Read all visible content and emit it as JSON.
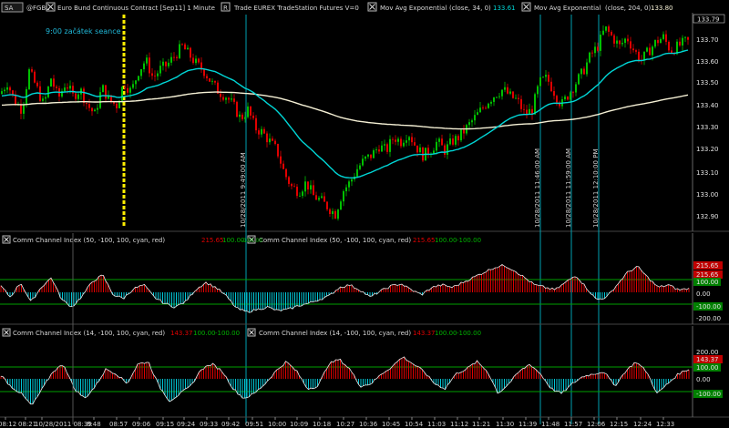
{
  "header": {
    "symbol_box": "SA",
    "symbol": "@FGBL",
    "description": "Euro Bund Continuous Contract [Sep11]  1 Minute",
    "trade_box": "R",
    "trade_info": "Trade  EUREX  TradeStation  Futures  V=0",
    "ind1_name": "Mov Avg Exponential",
    "ind1_params": "(close, 34, 0)",
    "ind1_value": "133.61",
    "ind2_name": "Mov Avg Exponential",
    "ind2_params": "(close, 204, 0)",
    "ind2_value": "133.80"
  },
  "annotations": {
    "session_start": "9:00 začátek seance",
    "vline1": "10/28/2011 9:49:00 AM",
    "vline2": "10/28/2011 11:46:00 AM",
    "vline3": "10/28/2011 11:59:00 AM",
    "vline4": "10/28/2011 12:10:00 PM"
  },
  "cci1": {
    "title_a": "Comm Channel Index  (50, -100, 100, cyan, red)",
    "title_b": "Comm Channel Index  (50, -100, 100, cyan, red)",
    "val": "215.65",
    "upper": "100.00",
    "lower": "-100.00",
    "axis_value_badge": "215.65",
    "axis_upper_badge": "100.00",
    "axis_lower_badge": "-100.00",
    "axis_minus200": "-200.00",
    "axis_zero": "0.00"
  },
  "cci2": {
    "title_a": "Comm Channel Index  (14, -100, 100, cyan, red)",
    "title_b": "Comm Channel Index  (14, -100, 100, cyan, red)",
    "val": "143.37",
    "upper": "100.00",
    "lower": "-100.00",
    "axis_200": "200.00",
    "axis_value_badge": "143.37",
    "axis_upper_badge": "100.00",
    "axis_zero": "0.00",
    "axis_lower_badge": "-100.00"
  },
  "price_axis": [
    "133.70",
    "133.60",
    "133.50",
    "133.40",
    "133.30",
    "133.20",
    "133.10",
    "133.00",
    "132.90"
  ],
  "price_axis_top": "133.79",
  "time_axis": [
    "08:12",
    "08:21",
    "10/28/2011 08:39",
    "8:48",
    "08:57",
    "09:06",
    "09:15",
    "09:24",
    "09:33",
    "09:42",
    "09:51",
    "10:00",
    "10:09",
    "10:18",
    "10:27",
    "10:36",
    "10:45",
    "10:54",
    "11:03",
    "11:12",
    "11:21",
    "11:30",
    "11:39",
    "11:48",
    "11:57",
    "12:06",
    "12:15",
    "12:24",
    "12:33"
  ],
  "colors": {
    "up": "#00c000",
    "down": "#e00000",
    "ema34": "#00d6d6",
    "ema204": "#f5f0d5",
    "vline": "#00a0b0",
    "session_line": "#ffee00",
    "cci_pos": "#e00000",
    "cci_neg": "#00c8d8",
    "green_band": "#00a000"
  },
  "chart_data": {
    "type": "candlestick",
    "instrument": "@FGBL",
    "ylim": [
      132.86,
      133.8
    ],
    "ema34_last": 133.61,
    "ema204_last": 133.8,
    "price_path": [
      [
        0,
        133.45
      ],
      [
        8,
        133.5
      ],
      [
        16,
        133.42
      ],
      [
        24,
        133.38
      ],
      [
        32,
        133.55
      ],
      [
        40,
        133.48
      ],
      [
        48,
        133.4
      ],
      [
        56,
        133.52
      ],
      [
        64,
        133.43
      ],
      [
        72,
        133.5
      ],
      [
        80,
        133.44
      ],
      [
        88,
        133.47
      ],
      [
        96,
        133.4
      ],
      [
        104,
        133.36
      ],
      [
        112,
        133.48
      ],
      [
        120,
        133.42
      ],
      [
        128,
        133.4
      ],
      [
        136,
        133.5
      ],
      [
        144,
        133.46
      ],
      [
        152,
        133.55
      ],
      [
        160,
        133.6
      ],
      [
        168,
        133.52
      ],
      [
        176,
        133.56
      ],
      [
        184,
        133.58
      ],
      [
        192,
        133.62
      ],
      [
        200,
        133.66
      ],
      [
        208,
        133.62
      ],
      [
        216,
        133.58
      ],
      [
        224,
        133.55
      ],
      [
        232,
        133.5
      ],
      [
        240,
        133.46
      ],
      [
        248,
        133.44
      ],
      [
        256,
        133.4
      ],
      [
        264,
        133.34
      ],
      [
        272,
        133.38
      ],
      [
        280,
        133.3
      ],
      [
        288,
        133.28
      ],
      [
        296,
        133.24
      ],
      [
        304,
        133.2
      ],
      [
        312,
        133.1
      ],
      [
        320,
        133.04
      ],
      [
        328,
        133.02
      ],
      [
        336,
        133.06
      ],
      [
        344,
        133.0
      ],
      [
        352,
        132.98
      ],
      [
        360,
        132.95
      ],
      [
        368,
        132.92
      ],
      [
        376,
        133.02
      ],
      [
        384,
        133.06
      ],
      [
        392,
        133.12
      ],
      [
        400,
        133.16
      ],
      [
        408,
        133.18
      ],
      [
        416,
        133.22
      ],
      [
        424,
        133.2
      ],
      [
        432,
        133.26
      ],
      [
        440,
        133.24
      ],
      [
        448,
        133.28
      ],
      [
        456,
        133.22
      ],
      [
        464,
        133.18
      ],
      [
        472,
        133.2
      ],
      [
        480,
        133.24
      ],
      [
        488,
        133.2
      ],
      [
        496,
        133.24
      ],
      [
        504,
        133.26
      ],
      [
        512,
        133.3
      ],
      [
        520,
        133.34
      ],
      [
        528,
        133.38
      ],
      [
        536,
        133.42
      ],
      [
        544,
        133.45
      ],
      [
        552,
        133.47
      ],
      [
        560,
        133.44
      ],
      [
        568,
        133.42
      ],
      [
        576,
        133.36
      ],
      [
        584,
        133.38
      ],
      [
        592,
        133.5
      ],
      [
        600,
        133.52
      ],
      [
        608,
        133.46
      ],
      [
        616,
        133.4
      ],
      [
        624,
        133.45
      ],
      [
        632,
        133.5
      ],
      [
        640,
        133.55
      ],
      [
        648,
        133.62
      ],
      [
        656,
        133.66
      ],
      [
        664,
        133.74
      ],
      [
        672,
        133.7
      ],
      [
        680,
        133.66
      ],
      [
        688,
        133.7
      ],
      [
        696,
        133.64
      ],
      [
        704,
        133.6
      ],
      [
        712,
        133.64
      ],
      [
        720,
        133.68
      ],
      [
        728,
        133.7
      ],
      [
        736,
        133.64
      ],
      [
        744,
        133.66
      ],
      [
        752,
        133.68
      ]
    ],
    "cci1_path": [
      60,
      -40,
      80,
      -80,
      40,
      120,
      -60,
      -120,
      -30,
      90,
      140,
      -20,
      -50,
      30,
      60,
      -40,
      -90,
      -120,
      -80,
      20,
      80,
      40,
      -30,
      -130,
      -160,
      -140,
      -120,
      -150,
      -140,
      -110,
      -90,
      -60,
      -30,
      40,
      60,
      20,
      -40,
      10,
      50,
      70,
      20,
      -20,
      40,
      60,
      40,
      80,
      120,
      160,
      200,
      220,
      180,
      120,
      60,
      40,
      20,
      80,
      140,
      40,
      -60,
      -40,
      60,
      160,
      210,
      120,
      40,
      60,
      20,
      30
    ],
    "cci2_path": [
      40,
      -60,
      -120,
      -220,
      -80,
      60,
      120,
      -80,
      -160,
      -60,
      80,
      40,
      -40,
      120,
      140,
      -60,
      -180,
      -120,
      -60,
      80,
      120,
      60,
      -80,
      -160,
      -120,
      -40,
      60,
      140,
      60,
      -80,
      -60,
      120,
      160,
      80,
      -60,
      -40,
      40,
      100,
      180,
      120,
      60,
      -40,
      -80,
      40,
      80,
      140,
      60,
      -120,
      -40,
      60,
      120,
      40,
      -80,
      -120,
      -40,
      20,
      40,
      60,
      -60,
      60,
      140,
      60,
      -120,
      -40,
      40,
      80
    ]
  }
}
